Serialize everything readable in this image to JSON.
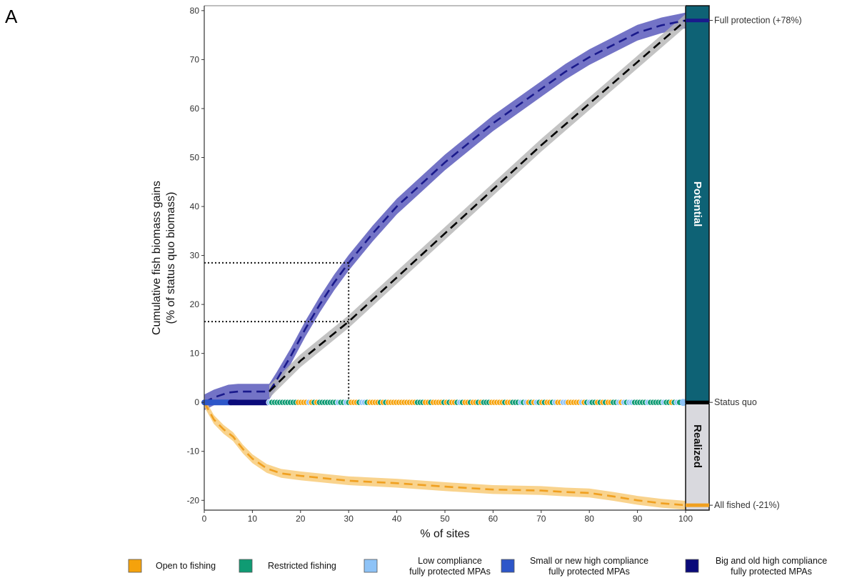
{
  "panel_label": "A",
  "chart_data": {
    "type": "line",
    "xlabel": "% of sites",
    "ylabel_line1": "Cumulative fish biomass gains",
    "ylabel_line2": "(% of status quo biomass)",
    "xlim": [
      0,
      100
    ],
    "ylim": [
      -22,
      81
    ],
    "x_ticks": [
      0,
      10,
      20,
      30,
      40,
      50,
      60,
      70,
      80,
      90,
      100
    ],
    "y_ticks": [
      -20,
      -10,
      0,
      10,
      20,
      30,
      40,
      50,
      60,
      70,
      80
    ],
    "grid": false,
    "legend_position": "bottom",
    "series": [
      {
        "key": "purple",
        "color": "#1a1a8c",
        "band_color": "#5050b8",
        "x": [
          0,
          2,
          5,
          7,
          10,
          13.5,
          15,
          18,
          21,
          24,
          27,
          30,
          35,
          40,
          45,
          50,
          55,
          60,
          65,
          70,
          75,
          80,
          85,
          90,
          95,
          100
        ],
        "y": [
          0,
          1.0,
          2.0,
          2.2,
          2.2,
          2.2,
          4.5,
          9.5,
          15.0,
          20.0,
          24.5,
          28.5,
          34.5,
          40.0,
          44.5,
          49.0,
          53.0,
          57.0,
          60.5,
          64.0,
          67.5,
          70.5,
          73.0,
          75.5,
          77.0,
          78.0
        ],
        "band": 1.6
      },
      {
        "key": "gray",
        "color": "#000000",
        "band_color": "#b4b4b4",
        "x": [
          13.5,
          20,
          30,
          40,
          50,
          60,
          70,
          80,
          90,
          100
        ],
        "y": [
          2.2,
          8.5,
          16.5,
          25.5,
          34.5,
          43.5,
          52.5,
          61.0,
          69.5,
          78.0
        ],
        "band": 1.3
      },
      {
        "key": "orange",
        "color": "#f0a020",
        "band_color": "#f8c870",
        "x": [
          0,
          2,
          4,
          6,
          8,
          10,
          13,
          16,
          20,
          30,
          40,
          50,
          60,
          70,
          75,
          80,
          85,
          90,
          95,
          100
        ],
        "y": [
          0,
          -3.5,
          -5.5,
          -7.0,
          -9.5,
          -11.5,
          -13.5,
          -14.5,
          -15.0,
          -16.0,
          -16.5,
          -17.2,
          -17.8,
          -18.0,
          -18.3,
          -18.5,
          -19.2,
          -20.0,
          -20.6,
          -21.0
        ],
        "band": 0.9
      }
    ],
    "highlight_x": 30,
    "highlight_y": [
      28.5,
      16.5
    ],
    "point_strip": {
      "segments": [
        {
          "from": 0,
          "to": 5.5,
          "category": "small_new"
        },
        {
          "from": 5.5,
          "to": 13.5,
          "category": "big_old"
        }
      ],
      "pattern_from": 13.5,
      "pattern_to": 99,
      "end_category": "low"
    },
    "side_band": {
      "potential_label": "Potential",
      "realized_label": "Realized",
      "potential_range": [
        0,
        81
      ],
      "realized_range": [
        -22,
        0
      ],
      "potential_color": "#0e6275",
      "realized_color": "#d9d9de"
    },
    "side_markers": [
      {
        "label": "Full protection (+78%)",
        "y": 78,
        "color": "#1a1a8c"
      },
      {
        "label": "Status quo",
        "y": 0,
        "color": "#000000"
      },
      {
        "label": "All fished (-21%)",
        "y": -21,
        "color": "#f0a020"
      }
    ],
    "legend": [
      {
        "key": "open",
        "lines": [
          "Open to fishing"
        ],
        "color": "#f5a20c"
      },
      {
        "key": "restricted",
        "lines": [
          "Restricted fishing"
        ],
        "color": "#0f9b73"
      },
      {
        "key": "low",
        "lines": [
          "Low compliance",
          "fully protected MPAs"
        ],
        "color": "#8ec3f7"
      },
      {
        "key": "small_new",
        "lines": [
          "Small or new high compliance",
          "fully protected MPAs"
        ],
        "color": "#2d56c9"
      },
      {
        "key": "big_old",
        "lines": [
          "Big and old high compliance",
          "fully protected MPAs"
        ],
        "color": "#0a0a7a"
      }
    ]
  }
}
